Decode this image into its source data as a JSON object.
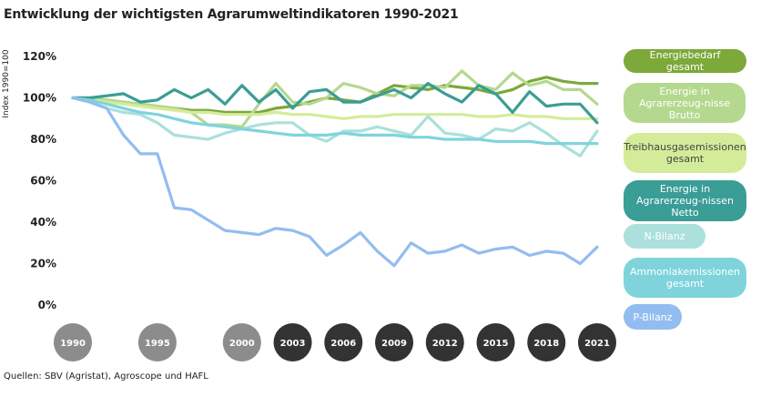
{
  "title": "Entwicklung der wichtigsten Agrarumweltindikatoren 1990-2021",
  "source": "Quellen: SBV (Agristat), Agroscope und HAFL",
  "chart_data": {
    "type": "line",
    "title": "Entwicklung der wichtigsten Agrarumweltindikatoren 1990-2021",
    "ylabel": "Index 1990=100",
    "xlabel": "",
    "ylim": [
      0,
      125
    ],
    "yticks": [
      0,
      20,
      40,
      60,
      80,
      100,
      120
    ],
    "ytick_labels": [
      "0%",
      "20%",
      "40%",
      "60%",
      "80%",
      "100%",
      "120%"
    ],
    "x": [
      1990,
      1991,
      1992,
      1993,
      1994,
      1995,
      1996,
      1997,
      1998,
      1999,
      2000,
      2001,
      2002,
      2003,
      2004,
      2005,
      2006,
      2007,
      2008,
      2009,
      2010,
      2011,
      2012,
      2013,
      2014,
      2015,
      2016,
      2017,
      2018,
      2019,
      2020,
      2021
    ],
    "xtick_labels": [
      "1990",
      "1995",
      "2000",
      "2003",
      "2006",
      "2009",
      "2012",
      "2015",
      "2018",
      "2021"
    ],
    "xtick_colors": [
      "#8c8c8c",
      "#8c8c8c",
      "#8c8c8c",
      "#333333",
      "#333333",
      "#333333",
      "#333333",
      "#333333",
      "#333333",
      "#333333"
    ],
    "series": [
      {
        "name": "Energiebedarf gesamt",
        "color": "#7da83a",
        "values": [
          100,
          100,
          99,
          98,
          97,
          96,
          95,
          94,
          94,
          93,
          93,
          93,
          95,
          96,
          98,
          100,
          99,
          98,
          102,
          106,
          105,
          104,
          106,
          105,
          104,
          102,
          104,
          108,
          110,
          108,
          107,
          107
        ]
      },
      {
        "name": "Energie in Agrarerzeugnisse Brutto",
        "color": "#b5d88f",
        "values": [
          100,
          100,
          99,
          98,
          97,
          96,
          95,
          93,
          87,
          87,
          86,
          97,
          107,
          98,
          97,
          100,
          107,
          105,
          102,
          101,
          106,
          106,
          105,
          113,
          106,
          104,
          112,
          106,
          108,
          104,
          104,
          97
        ]
      },
      {
        "name": "Treibhausgasemissionen gesamt",
        "color": "#d4ec9a",
        "values": [
          100,
          99,
          98,
          97,
          96,
          95,
          94,
          93,
          93,
          92,
          92,
          92,
          93,
          92,
          92,
          91,
          90,
          91,
          91,
          92,
          92,
          92,
          92,
          92,
          91,
          91,
          92,
          91,
          91,
          90,
          90,
          90
        ]
      },
      {
        "name": "Energie in Agrarerzeugnissen Netto",
        "color": "#3a9d96",
        "values": [
          100,
          100,
          101,
          102,
          98,
          99,
          104,
          100,
          104,
          97,
          106,
          98,
          104,
          95,
          103,
          104,
          98,
          98,
          101,
          104,
          100,
          107,
          102,
          98,
          106,
          102,
          93,
          103,
          96,
          97,
          97,
          88
        ]
      },
      {
        "name": "N-Bilanz",
        "color": "#abe0dc",
        "values": [
          100,
          98,
          95,
          93,
          92,
          88,
          82,
          81,
          80,
          83,
          85,
          87,
          88,
          88,
          82,
          79,
          84,
          84,
          86,
          84,
          82,
          91,
          83,
          82,
          80,
          85,
          84,
          88,
          83,
          77,
          72,
          84
        ]
      },
      {
        "name": "Ammoniakemissionen gesamt",
        "color": "#7fd4dc",
        "values": [
          100,
          99,
          97,
          95,
          93,
          92,
          90,
          88,
          87,
          86,
          85,
          84,
          83,
          82,
          82,
          82,
          83,
          82,
          82,
          82,
          81,
          81,
          80,
          80,
          80,
          79,
          79,
          79,
          78,
          78,
          78,
          78
        ]
      },
      {
        "name": "P-Bilanz",
        "color": "#92bdf0",
        "values": [
          100,
          98,
          95,
          82,
          73,
          73,
          47,
          46,
          41,
          36,
          35,
          34,
          37,
          36,
          33,
          24,
          29,
          35,
          26,
          19,
          30,
          25,
          26,
          29,
          25,
          27,
          28,
          24,
          26,
          25,
          20,
          28
        ]
      }
    ]
  },
  "legend": [
    {
      "label": "Energiebedarf gesamt",
      "bg": "#7da83a",
      "fg": "#ffffff"
    },
    {
      "label": "Energie in Agrarerzeug-nisse Brutto",
      "bg": "#b5d88f",
      "fg": "#ffffff"
    },
    {
      "label": "Treibhausgasemissionen gesamt",
      "bg": "#d4ec9a",
      "fg": "#444444"
    },
    {
      "label": "Energie in Agrarerzeug-nissen Netto",
      "bg": "#3a9d96",
      "fg": "#ffffff"
    },
    {
      "label": "N-Bilanz",
      "bg": "#abe0dc",
      "fg": "#ffffff"
    },
    {
      "label": "Ammoniakemissionen gesamt",
      "bg": "#7fd4dc",
      "fg": "#ffffff"
    },
    {
      "label": "P-Bilanz",
      "bg": "#92bdf0",
      "fg": "#ffffff"
    }
  ]
}
